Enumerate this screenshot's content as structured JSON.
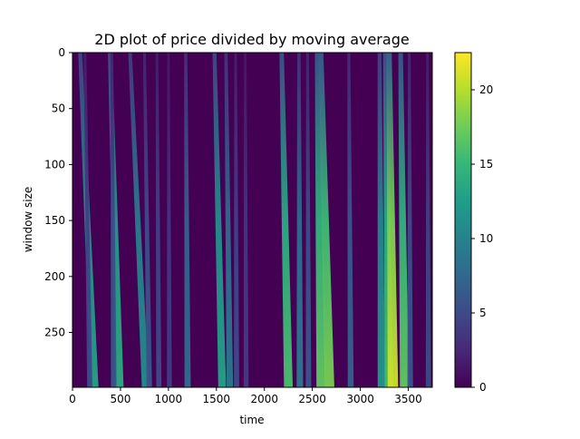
{
  "chart_data": {
    "type": "heatmap",
    "title": "2D plot of price divided by moving average",
    "xlabel": "time",
    "ylabel": "window size",
    "xlim": [
      0,
      3750
    ],
    "ylim": [
      0,
      299
    ],
    "y_inverted": true,
    "xticks": [
      "0",
      "500",
      "1000",
      "1500",
      "2000",
      "2500",
      "3000",
      "3500"
    ],
    "xtick_values": [
      0,
      500,
      1000,
      1500,
      2000,
      2500,
      3000,
      3500
    ],
    "yticks": [
      "0",
      "50",
      "100",
      "150",
      "200",
      "250"
    ],
    "ytick_values": [
      0,
      50,
      100,
      150,
      200,
      250
    ],
    "colormap": "viridis",
    "colorbar": {
      "min": 0,
      "max": 22.5,
      "ticks": [
        "0",
        "5",
        "10",
        "15",
        "20"
      ],
      "tick_values": [
        0,
        5,
        10,
        15,
        20
      ]
    },
    "streaks": [
      {
        "x_top": 80,
        "x_bottom": 230,
        "peak": 13
      },
      {
        "x_top": 130,
        "x_bottom": 180,
        "peak": 5
      },
      {
        "x_top": 390,
        "x_bottom": 490,
        "peak": 14
      },
      {
        "x_top": 410,
        "x_bottom": 430,
        "peak": 6
      },
      {
        "x_top": 600,
        "x_bottom": 760,
        "peak": 11
      },
      {
        "x_top": 750,
        "x_bottom": 800,
        "peak": 6
      },
      {
        "x_top": 880,
        "x_bottom": 900,
        "peak": 5
      },
      {
        "x_top": 1000,
        "x_bottom": 1010,
        "peak": 4
      },
      {
        "x_top": 1180,
        "x_bottom": 1200,
        "peak": 8
      },
      {
        "x_top": 1480,
        "x_bottom": 1560,
        "peak": 13
      },
      {
        "x_top": 1600,
        "x_bottom": 1640,
        "peak": 9
      },
      {
        "x_top": 1700,
        "x_bottom": 1710,
        "peak": 5
      },
      {
        "x_top": 1800,
        "x_bottom": 1810,
        "peak": 4
      },
      {
        "x_top": 2180,
        "x_bottom": 2250,
        "peak": 16
      },
      {
        "x_top": 2360,
        "x_bottom": 2370,
        "peak": 9
      },
      {
        "x_top": 2450,
        "x_bottom": 2460,
        "peak": 6
      },
      {
        "x_top": 2550,
        "x_bottom": 2590,
        "peak": 17
      },
      {
        "x_top": 2590,
        "x_bottom": 2680,
        "peak": 18
      },
      {
        "x_top": 2880,
        "x_bottom": 2900,
        "peak": 7
      },
      {
        "x_top": 3200,
        "x_bottom": 3220,
        "peak": 12
      },
      {
        "x_top": 3260,
        "x_bottom": 3300,
        "peak": 16
      },
      {
        "x_top": 3300,
        "x_bottom": 3340,
        "peak": 21
      },
      {
        "x_top": 3420,
        "x_bottom": 3460,
        "peak": 17
      },
      {
        "x_top": 3510,
        "x_bottom": 3520,
        "peak": 6
      },
      {
        "x_top": 3700,
        "x_bottom": 3710,
        "peak": 5
      }
    ]
  }
}
